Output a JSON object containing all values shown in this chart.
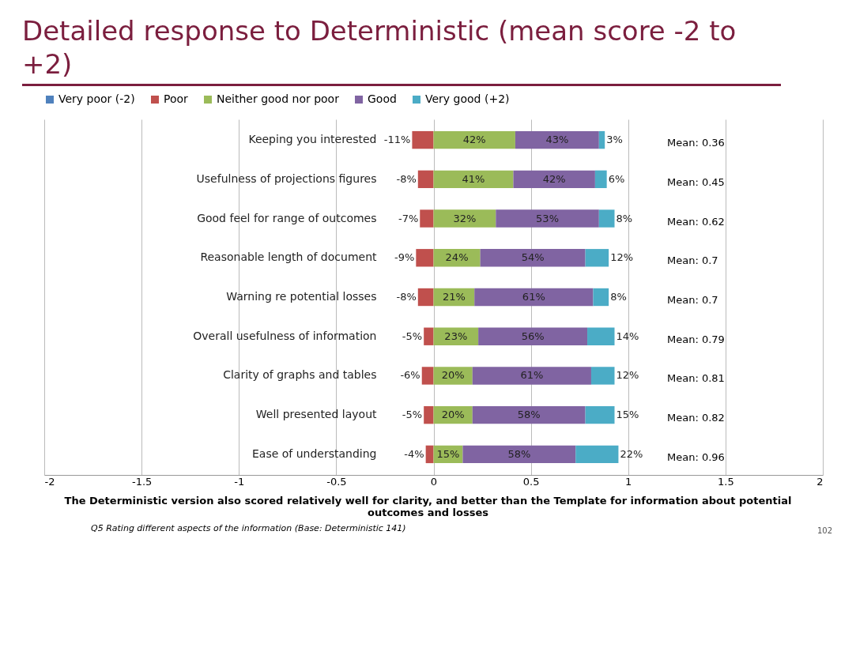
{
  "chart_data": {
    "type": "bar",
    "orientation": "horizontal",
    "stacked": true,
    "title": "Detailed response to Deterministic (mean score -2 to +2)",
    "categories": [
      "Keeping you interested",
      "Usefulness of projections figures",
      "Good feel for range of outcomes",
      "Reasonable length of document",
      "Warning re potential losses",
      "Overall usefulness of information",
      "Clarity of graphs and tables",
      "Well presented layout",
      "Ease of understanding"
    ],
    "series": [
      {
        "name": "Very poor (-2)",
        "color": "#4f81bd",
        "values": [
          null,
          null,
          null,
          null,
          null,
          null,
          null,
          null,
          null
        ],
        "value_labels": [
          null,
          null,
          null,
          null,
          null,
          null,
          null,
          null,
          null
        ]
      },
      {
        "name": "Poor",
        "color": "#c0504d",
        "values": [
          -0.11,
          -0.08,
          -0.07,
          -0.09,
          -0.08,
          -0.05,
          -0.06,
          -0.05,
          -0.04
        ],
        "value_labels": [
          "-11%",
          "-8%",
          "-7%",
          "-9%",
          "-8%",
          "-5%",
          "-6%",
          "-5%",
          "-4%"
        ]
      },
      {
        "name": "Neither good nor poor",
        "color": "#9bbb59",
        "values": [
          0.42,
          0.41,
          0.32,
          0.24,
          0.21,
          0.23,
          0.2,
          0.2,
          0.15
        ],
        "value_labels": [
          "42%",
          "41%",
          "32%",
          "24%",
          "21%",
          "23%",
          "20%",
          "20%",
          "15%"
        ]
      },
      {
        "name": "Good",
        "color": "#8064a2",
        "values": [
          0.43,
          0.42,
          0.53,
          0.54,
          0.61,
          0.56,
          0.61,
          0.58,
          0.58
        ],
        "value_labels": [
          "43%",
          "42%",
          "53%",
          "54%",
          "61%",
          "56%",
          "61%",
          "58%",
          "58%"
        ]
      },
      {
        "name": "Very good (+2)",
        "color": "#4bacc6",
        "values": [
          0.03,
          0.06,
          0.08,
          0.12,
          0.08,
          0.14,
          0.12,
          0.15,
          0.22
        ],
        "value_labels": [
          "3%",
          "6%",
          "8%",
          "12%",
          "8%",
          "14%",
          "12%",
          "15%",
          "22%"
        ]
      }
    ],
    "xlim": [
      -2,
      2
    ],
    "xticks": [
      {
        "value": -2,
        "label": "-2"
      },
      -1.5,
      {
        "value": -1,
        "label": "-1"
      },
      -0.5,
      {
        "value": 0,
        "label": "0"
      },
      0.5,
      {
        "value": 1,
        "label": "1"
      },
      1.5,
      {
        "value": 2,
        "label": "2"
      }
    ],
    "grid": "x",
    "legend": "top",
    "annotations": [
      "Mean: 0.36",
      "Mean: 0.45",
      "Mean: 0.62",
      "Mean: 0.7",
      "Mean: 0.7",
      "Mean: 0.79",
      "Mean: 0.81",
      "Mean: 0.82",
      "Mean: 0.96",
      "The Deterministic version also scored relatively well for clarity, and better than the Template for information about potential outcomes and losses",
      "Q5  Rating different aspects of the information  (Base:  Deterministic 141)",
      "102"
    ]
  }
}
